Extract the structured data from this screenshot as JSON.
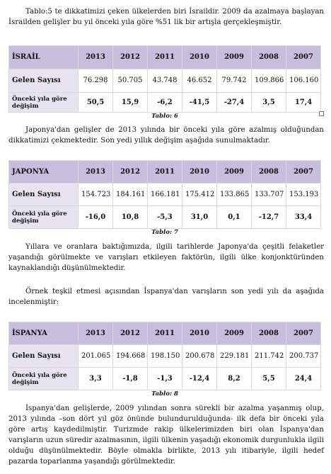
{
  "paragraphs": {
    "p1": "Tablo:5 te dikkatimizi çeken ülkelerden biri İsraildir. 2009 da azalmaya başlayan İsrailden gelişler bu yıl önceki yıla göre %51 lik bir artışla gerçekleşmiştir.",
    "p2": "Japonya'dan gelişler de 2013 yılında bir önceki yıla göre azalmış olduğundan dikkatimizi çekmektedir. Son yedi yıllık değişim aşağıda sunulmaktadır.",
    "p3": "Yıllara ve oranlara baktığımızda, ilgili tarihlerde Japonya'da çeşitli felaketler yaşandığı görülmekte ve varışları etkileyen faktörün, ilgili ülke konjonktüründen kaynaklandığı düşünülmektedir.",
    "p4": "Örnek teşkil etmesi açısından İspanya'dan varışların son yedi yılı da aşağıda incelenmiştir:",
    "p5": "İspanya'dan gelişlerde, 2009 yılından sonra sürekli bir azalma yaşanmış olup, 2013 yılında –son dört yıl göz önünde bulundurulduğunda- ilk defa bir önceki yıla göre artış kaydedilmiştir.  Turizmde rakip ülkelerimizden biri olan İspanya'dan varışların uzun süredir azalmasının, ilgili ülkenin yaşadığı ekonomik durgunlukla ilgili olduğu düşünülmektedir. Böyle olmakla birlikte, 2013 yılı itibariyle, ilgili hedef pazarda toparlanma yaşandığı görülmektedir."
  },
  "tables": [
    {
      "country": "İSRAİL",
      "years": [
        "2013",
        "2012",
        "2011",
        "2010",
        "2009",
        "2008",
        "2007"
      ],
      "row1_label": "Gelen Sayısı",
      "row1": [
        "76.298",
        "50.705",
        "43.748",
        "46.652",
        "79.742",
        "109.866",
        "106.160"
      ],
      "row2_label": "Önceki yıla göre değişim",
      "row2": [
        "50,5",
        "15,9",
        "-6,2",
        "-41,5",
        "-27,4",
        "3,5",
        "17,4"
      ],
      "caption": "Tablo: 6"
    },
    {
      "country": "JAPONYA",
      "years": [
        "2013",
        "2012",
        "2011",
        "2010",
        "2009",
        "2008",
        "2007"
      ],
      "row1_label": "Gelen Sayısı",
      "row1": [
        "154.723",
        "184.161",
        "166.181",
        "175.412",
        "133.865",
        "133.707",
        "153.193"
      ],
      "row2_label": "Önceki yıla göre değişim",
      "row2": [
        "-16,0",
        "10,8",
        "-5,3",
        "31,0",
        "0,1",
        "-12,7",
        "33,4"
      ],
      "caption": "Tablo: 7"
    },
    {
      "country": "İSPANYA",
      "years": [
        "2013",
        "2012",
        "2011",
        "2010",
        "2009",
        "2008",
        "2007"
      ],
      "row1_label": "Gelen Sayısı",
      "row1": [
        "201.065",
        "194.668",
        "198.150",
        "200.678",
        "229.181",
        "211.742",
        "200.737"
      ],
      "row2_label": "Önceki yıla göre değişim",
      "row2": [
        "3,3",
        "-1,8",
        "-1,3",
        "-12,4",
        "8,2",
        "5,5",
        "24,4"
      ],
      "caption": "Tablo: 8"
    }
  ]
}
